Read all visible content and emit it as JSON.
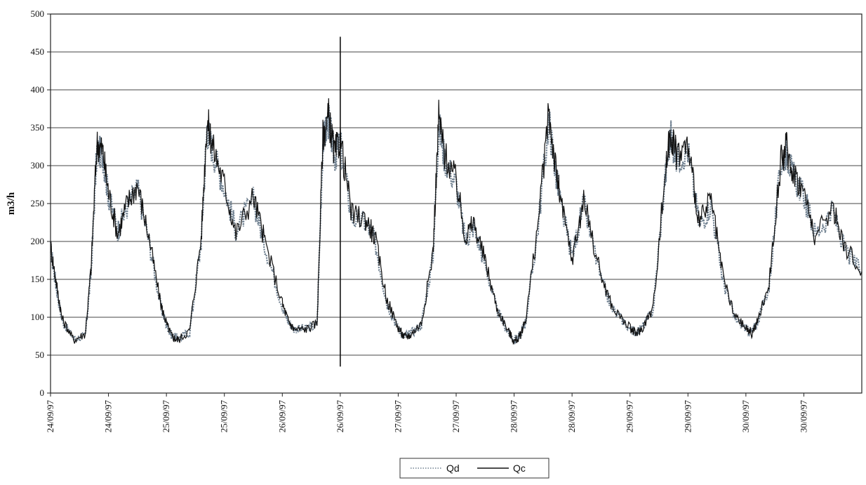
{
  "chart_data": {
    "type": "line",
    "title": "",
    "xlabel": "",
    "ylabel": "m3/h",
    "ylim": [
      0,
      500
    ],
    "yticks": [
      0,
      50,
      100,
      150,
      200,
      250,
      300,
      350,
      400,
      450,
      500
    ],
    "grid": true,
    "legend_position": "bottom-center",
    "xtick_labels": [
      "24/09/97",
      "24/09/97",
      "25/09/97",
      "25/09/97",
      "26/09/97",
      "26/09/97",
      "27/09/97",
      "27/09/97",
      "28/09/97",
      "28/09/97",
      "29/09/97",
      "29/09/97",
      "30/09/97",
      "30/09/97"
    ],
    "x_days": [
      0,
      0.5,
      1,
      1.5,
      2,
      2.5,
      3,
      3.5,
      4,
      4.5,
      5,
      5.5,
      6,
      6.5
    ],
    "xlim_days": [
      0,
      7
    ],
    "series": [
      {
        "name": "Qd",
        "style": "dotted",
        "color": "#6e7f8f",
        "x": [
          0,
          0.05,
          0.1,
          0.2,
          0.3,
          0.35,
          0.4,
          0.45,
          0.5,
          0.58,
          0.66,
          0.75,
          0.85,
          0.95,
          1.0,
          1.05,
          1.1,
          1.2,
          1.3,
          1.35,
          1.4,
          1.5,
          1.6,
          1.75,
          1.85,
          2.0,
          2.05,
          2.1,
          2.2,
          2.3,
          2.35,
          2.4,
          2.45,
          2.5,
          2.6,
          2.72,
          2.8,
          2.9,
          3.0,
          3.05,
          3.1,
          3.2,
          3.3,
          3.35,
          3.4,
          3.5,
          3.58,
          3.65,
          3.75,
          3.85,
          3.95,
          4.0,
          4.05,
          4.1,
          4.2,
          4.3,
          4.35,
          4.4,
          4.5,
          4.6,
          4.75,
          4.85,
          5.0,
          5.05,
          5.1,
          5.2,
          5.3,
          5.35,
          5.4,
          5.5,
          5.6,
          5.7,
          5.8,
          5.9,
          6.0,
          6.05,
          6.1,
          6.2,
          6.3,
          6.35,
          6.4,
          6.5,
          6.6,
          6.75,
          6.85,
          7.0
        ],
        "y": [
          190,
          140,
          95,
          72,
          75,
          160,
          320,
          315,
          260,
          215,
          245,
          270,
          200,
          115,
          90,
          75,
          72,
          80,
          200,
          350,
          320,
          270,
          215,
          255,
          195,
          115,
          95,
          85,
          85,
          90,
          330,
          360,
          310,
          330,
          230,
          225,
          200,
          120,
          85,
          75,
          78,
          90,
          180,
          355,
          310,
          275,
          200,
          220,
          170,
          110,
          80,
          70,
          75,
          95,
          210,
          360,
          300,
          250,
          180,
          250,
          150,
          110,
          85,
          80,
          85,
          110,
          280,
          340,
          310,
          320,
          220,
          250,
          150,
          100,
          85,
          80,
          95,
          140,
          300,
          320,
          290,
          260,
          210,
          240,
          190,
          160
        ]
      },
      {
        "name": "Qc",
        "style": "solid",
        "color": "#111111",
        "x": [
          0,
          0.05,
          0.1,
          0.2,
          0.3,
          0.35,
          0.4,
          0.45,
          0.5,
          0.58,
          0.66,
          0.75,
          0.85,
          0.95,
          1.0,
          1.05,
          1.1,
          1.2,
          1.3,
          1.35,
          1.4,
          1.5,
          1.6,
          1.75,
          1.85,
          2.0,
          2.05,
          2.1,
          2.2,
          2.3,
          2.35,
          2.4,
          2.45,
          2.5,
          2.6,
          2.72,
          2.8,
          2.9,
          3.0,
          3.05,
          3.1,
          3.2,
          3.3,
          3.35,
          3.4,
          3.5,
          3.58,
          3.65,
          3.75,
          3.85,
          3.95,
          4.0,
          4.05,
          4.1,
          4.2,
          4.3,
          4.35,
          4.4,
          4.5,
          4.6,
          4.75,
          4.85,
          5.0,
          5.05,
          5.1,
          5.2,
          5.3,
          5.35,
          5.4,
          5.5,
          5.6,
          5.7,
          5.8,
          5.9,
          6.0,
          6.05,
          6.1,
          6.2,
          6.3,
          6.35,
          6.4,
          6.5,
          6.6,
          6.75,
          6.85,
          7.0
        ],
        "y": [
          195,
          145,
          98,
          70,
          78,
          165,
          330,
          320,
          265,
          210,
          250,
          275,
          205,
          118,
          92,
          74,
          70,
          82,
          205,
          360,
          325,
          275,
          210,
          260,
          200,
          118,
          96,
          84,
          84,
          92,
          340,
          365,
          315,
          335,
          235,
          230,
          205,
          125,
          86,
          74,
          76,
          92,
          185,
          365,
          315,
          280,
          205,
          225,
          175,
          112,
          82,
          68,
          74,
          98,
          215,
          370,
          305,
          255,
          175,
          255,
          155,
          112,
          86,
          78,
          84,
          112,
          285,
          345,
          315,
          325,
          225,
          255,
          155,
          102,
          86,
          78,
          94,
          145,
          305,
          325,
          295,
          265,
          205,
          245,
          195,
          160
        ]
      }
    ],
    "spike": {
      "x": 2.5,
      "y_top": 470,
      "y_bottom": 35
    }
  }
}
